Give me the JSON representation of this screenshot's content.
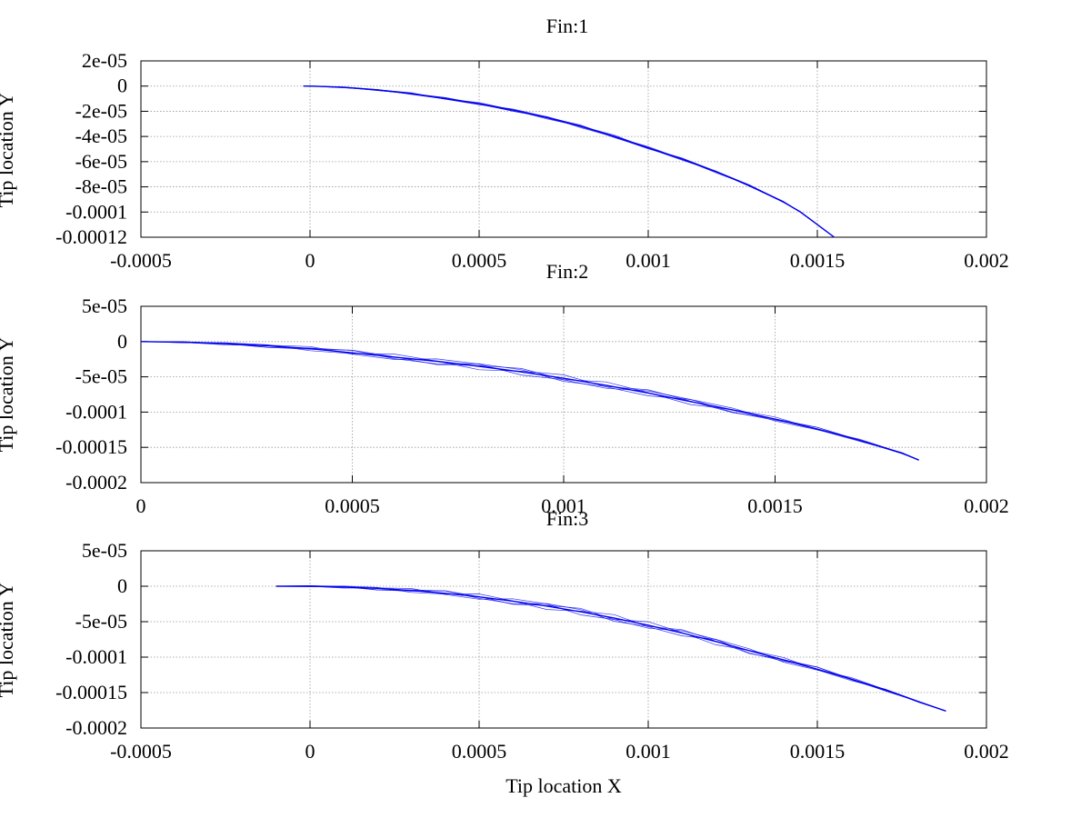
{
  "figure": {
    "xlabel": "Tip location X",
    "ylabel": "Tip location Y"
  },
  "colors": {
    "series": "#0000ee",
    "grid": "#999999"
  },
  "chart_data": [
    {
      "type": "line",
      "title": "Fin:1",
      "xlim": [
        -0.0005,
        0.002
      ],
      "ylim": [
        -0.00012,
        2e-05
      ],
      "xticks": [
        -0.0005,
        0,
        0.0005,
        0.001,
        0.0015,
        0.002
      ],
      "xtick_labels": [
        "-0.0005",
        "0",
        "0.0005",
        "0.001",
        "0.0015",
        "0.002"
      ],
      "yticks": [
        2e-05,
        0,
        -2e-05,
        -4e-05,
        -6e-05,
        -8e-05,
        -0.0001,
        -0.00012
      ],
      "ytick_labels": [
        "2e-05",
        "0",
        "-2e-05",
        "-4e-05",
        "-6e-05",
        "-8e-05",
        "-0.0001",
        "-0.00012"
      ],
      "grid": true,
      "series": [
        {
          "x": [
            -2e-05,
            0.0,
            0.0001,
            0.0002,
            0.0003,
            0.0004,
            0.0005,
            0.0006,
            0.0007,
            0.0008,
            0.0009,
            0.001,
            0.0011,
            0.0012,
            0.0013,
            0.0014,
            0.00145,
            0.0015,
            0.00155
          ],
          "y": [
            0.0,
            0.0,
            -1e-06,
            -3e-06,
            -6e-06,
            -1e-05,
            -1.4e-05,
            -1.9e-05,
            -2.5e-05,
            -3.2e-05,
            -4e-05,
            -4.9e-05,
            -5.8e-05,
            -6.8e-05,
            -7.9e-05,
            -9.2e-05,
            -0.0001,
            -0.00011,
            -0.00012
          ]
        }
      ]
    },
    {
      "type": "line",
      "title": "Fin:2",
      "xlim": [
        0,
        0.002
      ],
      "ylim": [
        -0.0002,
        5e-05
      ],
      "xticks": [
        0,
        0.0005,
        0.001,
        0.0015,
        0.002
      ],
      "xtick_labels": [
        "0",
        "0.0005",
        "0.001",
        "0.0015",
        "0.002"
      ],
      "yticks": [
        5e-05,
        0,
        -5e-05,
        -0.0001,
        -0.00015,
        -0.0002
      ],
      "ytick_labels": [
        "5e-05",
        "0",
        "-5e-05",
        "-0.0001",
        "-0.00015",
        "-0.0002"
      ],
      "grid": true,
      "series": [
        {
          "x": [
            0.0,
            0.0001,
            0.0002,
            0.0003,
            0.0004,
            0.0005,
            0.0006,
            0.0007,
            0.0008,
            0.0009,
            0.001,
            0.0011,
            0.0012,
            0.0013,
            0.0014,
            0.0015,
            0.0016,
            0.0017,
            0.0018,
            0.00184
          ],
          "y": [
            0.0,
            -1e-06,
            -3e-06,
            -6e-06,
            -1e-05,
            -1.6e-05,
            -2.2e-05,
            -2.8e-05,
            -3.5e-05,
            -4.3e-05,
            -5.2e-05,
            -6.2e-05,
            -7.3e-05,
            -8.5e-05,
            -9.7e-05,
            -0.00011,
            -0.000124,
            -0.00014,
            -0.000158,
            -0.000168
          ]
        }
      ]
    },
    {
      "type": "line",
      "title": "Fin:3",
      "xlim": [
        -0.0005,
        0.002
      ],
      "ylim": [
        -0.0002,
        5e-05
      ],
      "xticks": [
        -0.0005,
        0,
        0.0005,
        0.001,
        0.0015,
        0.002
      ],
      "xtick_labels": [
        "-0.0005",
        "0",
        "0.0005",
        "0.001",
        "0.0015",
        "0.002"
      ],
      "yticks": [
        5e-05,
        0,
        -5e-05,
        -0.0001,
        -0.00015,
        -0.0002
      ],
      "ytick_labels": [
        "5e-05",
        "0",
        "-5e-05",
        "-0.0001",
        "-0.00015",
        "-0.0002"
      ],
      "grid": true,
      "series": [
        {
          "x": [
            -0.0001,
            0.0,
            0.0001,
            0.0002,
            0.0003,
            0.0004,
            0.0005,
            0.0006,
            0.0007,
            0.0008,
            0.0009,
            0.001,
            0.0011,
            0.0012,
            0.0013,
            0.0014,
            0.0015,
            0.0016,
            0.0017,
            0.0018,
            0.00188
          ],
          "y": [
            0.0,
            0.0,
            -1e-06,
            -3e-06,
            -6e-06,
            -1e-05,
            -1.5e-05,
            -2.1e-05,
            -2.8e-05,
            -3.6e-05,
            -4.5e-05,
            -5.5e-05,
            -6.6e-05,
            -7.8e-05,
            -9.1e-05,
            -0.000104,
            -0.000117,
            -0.000131,
            -0.000146,
            -0.000163,
            -0.000176
          ]
        }
      ]
    }
  ]
}
